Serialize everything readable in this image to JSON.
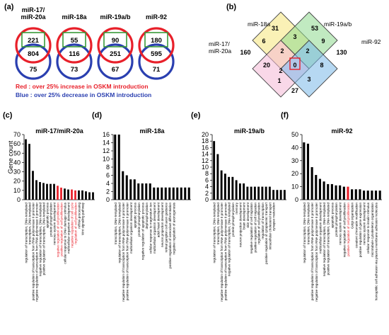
{
  "panels": {
    "a": {
      "letter": "(a)",
      "mirnas": [
        {
          "label_line1": "miR-17/",
          "label_line2": "miR-20a",
          "green": "221",
          "overlap": "804",
          "blue": "75"
        },
        {
          "label_line1": "miR-18a",
          "label_line2": "",
          "green": "55",
          "overlap": "116",
          "blue": "73"
        },
        {
          "label_line1": "miR-19a/b",
          "label_line2": "",
          "green": "90",
          "overlap": "251",
          "blue": "67"
        },
        {
          "label_line1": "miR-92",
          "label_line2": "",
          "green": "180",
          "overlap": "595",
          "blue": "71"
        }
      ],
      "legend_red": "Red : over 25% increase in OSKM introduction",
      "legend_blue": "Blue : over 25% decrease in OSKM introduction",
      "colors": {
        "red": "#e8202a",
        "blue": "#2a3fb0",
        "green": "#3a9a3a"
      }
    },
    "b": {
      "letter": "(b)",
      "labels": {
        "mir18a": "miR-18a",
        "mir19": "miR-19a/b",
        "mir17_l1": "miR-17/",
        "mir17_l2": "miR-20a",
        "mir92": "miR-92"
      },
      "regions": [
        "31",
        "53",
        "6",
        "3",
        "9",
        "160",
        "2",
        "2",
        "130",
        "20",
        "0",
        "8",
        "2",
        "1",
        "3",
        "27"
      ],
      "colors": {
        "yellow": "#f5e67a",
        "green": "#8ed88e",
        "pink": "#f4b8d6",
        "blue": "#7ab8e8"
      }
    },
    "charts": {
      "y_axis_title": "Gene count"
    }
  },
  "chart_data": [
    {
      "panel": "(c)",
      "type": "bar",
      "title": "miR-17/miR-20a",
      "ylim": [
        0,
        70
      ],
      "yticks": [
        0,
        10,
        20,
        30,
        40,
        50,
        60,
        70
      ],
      "ylabel": "Gene count",
      "values": [
        65,
        60,
        31,
        21,
        19,
        18,
        17,
        17,
        17,
        15,
        13,
        12,
        11,
        11,
        10,
        10,
        10,
        9,
        8,
        8
      ],
      "highlight_indices": [
        9,
        10,
        13,
        14
      ],
      "categories": [
        "regulation of transcription, DNA-templated",
        "transcription, DNA-templated",
        "positive regulation of transcription from RNA polymerase II promoter",
        "negative regulation of transcription from RNA polymerase II promoter",
        "negative regulation of transcription, DNA-templated",
        "positive regulation of transcription, DNA-templated",
        "apoptotic process",
        "protein phosphorylation",
        "nervous system development",
        "negative regulation of cell proliferation",
        "positive regulation of cell proliferation",
        "cellular response to DNA damage stimulus",
        "multicellular organism development",
        "negative regulation of cell cycle",
        "regulation of cell proliferation",
        "mRNA processing",
        "Wnt signaling pathway",
        "",
        "",
        ""
      ]
    },
    {
      "panel": "(d)",
      "type": "bar",
      "title": "miR-18a",
      "ylim": [
        0,
        16
      ],
      "yticks": [
        0,
        2,
        4,
        6,
        8,
        10,
        12,
        14,
        16
      ],
      "values": [
        16,
        16,
        7,
        6,
        5,
        5,
        4,
        4,
        4,
        4,
        3,
        3,
        3,
        3,
        3,
        3,
        3,
        3,
        3,
        3
      ],
      "highlight_indices": [],
      "categories": [
        "transcription, DNA-templated",
        "regulation of transcription, DNA-templated",
        "negative regulation of transcription from RNA polymerase II promoter",
        "positive regulation of transcription from RNA polymerase II promoter",
        "multicellular organism development",
        "apoptotic process",
        "protein phosphorylation",
        "negative regulation of apoptotic process",
        "dephosphorylation",
        "cellular response to magnesium ion",
        "multicellular organism development",
        "adult heart development",
        "neuron projection development",
        "retinal ganglion cell axon guidance",
        "positive regulation of osteoclast differentiation",
        "negative regulation of axonogenesis",
        "",
        "",
        "",
        ""
      ]
    },
    {
      "panel": "(e)",
      "type": "bar",
      "title": "miR-19a/b",
      "ylim": [
        0,
        20
      ],
      "yticks": [
        0,
        2,
        4,
        6,
        8,
        10,
        12,
        14,
        16,
        18,
        20
      ],
      "values": [
        18,
        14,
        9,
        8,
        7,
        7,
        6,
        5,
        5,
        4,
        4,
        4,
        4,
        4,
        4,
        4,
        3,
        3,
        3,
        3
      ],
      "highlight_indices": [],
      "categories": [
        "regulation of transcription, DNA-templated",
        "transcription, DNA-templated",
        "negative regulation of transcription from RNA polymerase II promoter",
        "positive regulation of transcription from RNA polymerase II promoter",
        "negative regulation of transcription, DNA-templated",
        "protein phosphorylation",
        "memory",
        "neuron projection development",
        "brain development",
        "skin development",
        "negative regulation of cell migration",
        "positive regulation of cell migration",
        "regulation of cell proliferation",
        "regulation of transcription",
        "positive regulation of cytoplasmic transport",
        "intracellular cholesterol transport",
        "synapse maturation",
        "",
        "",
        ""
      ]
    },
    {
      "panel": "(f)",
      "type": "bar",
      "title": "miR-92",
      "ylim": [
        0,
        50
      ],
      "yticks": [
        0,
        10,
        20,
        30,
        40,
        50
      ],
      "values": [
        44,
        43,
        25,
        19,
        16,
        14,
        12,
        12,
        11,
        11,
        10,
        10,
        8,
        8,
        8,
        7,
        7,
        7,
        7,
        7
      ],
      "highlight_indices": [
        11
      ],
      "categories": [
        "regulation of transcription, DNA-templated",
        "transcription, DNA-templated",
        "positive regulation of transcription from RNA polymerase II promoter",
        "negative regulation of transcription from RNA polymerase II promoter",
        "multicellular organism development",
        "negative regulation of transcription, DNA-templated",
        "positive regulation of transcription, DNA-templated",
        "apoptotic process",
        "protein phosphorylation",
        "nervous system development",
        "negative regulation of cell proliferation",
        "positive regulation of cell proliferation",
        "Golgi organization",
        "covalent chromatin modification",
        "positive regulation of gene expression",
        "nervous system development",
        "cellular response to insulin stimulus",
        "microtubule cytoskeleton organization",
        "homophilic cell adhesion via plasma membrane adhesion molecules",
        ""
      ]
    }
  ]
}
